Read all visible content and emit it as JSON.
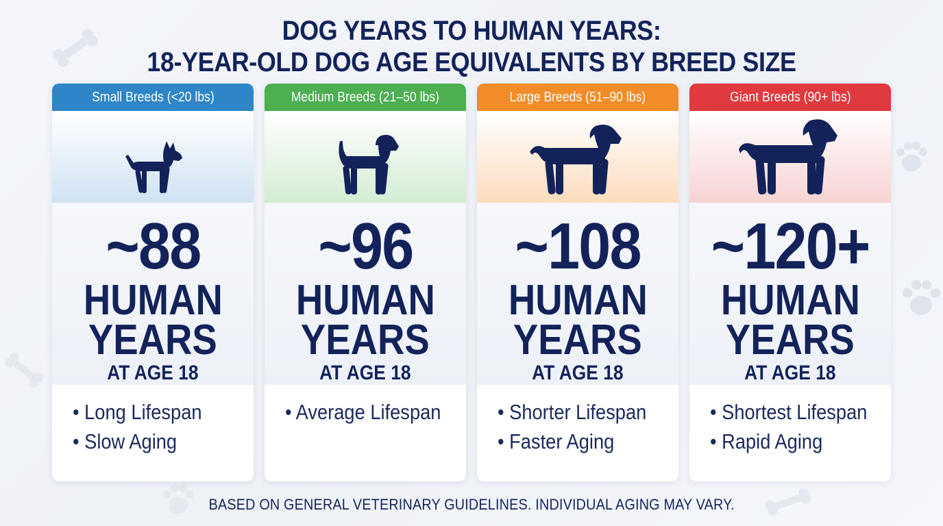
{
  "title": {
    "line1": "DOG YEARS TO HUMAN YEARS:",
    "line2": "18-YEAR-OLD DOG AGE EQUIVALENTS BY BREED SIZE"
  },
  "cards": [
    {
      "header": "Small Breeds (<20 lbs)",
      "color": "#2e86c8",
      "value": "~88",
      "unit_line1": "HUMAN",
      "unit_line2": "YEARS",
      "sub": "AT AGE 18",
      "traits": [
        "• Long Lifespan",
        "• Slow Aging"
      ],
      "dog_icon": "small-dog-silhouette-icon"
    },
    {
      "header": "Medium Breeds (21–50 lbs)",
      "color": "#4caf50",
      "value": "~96",
      "unit_line1": "HUMAN",
      "unit_line2": "YEARS",
      "sub": "AT AGE 18",
      "traits": [
        "• Average Lifespan"
      ],
      "dog_icon": "medium-dog-silhouette-icon"
    },
    {
      "header": "Large Breeds (51–90 lbs)",
      "color": "#f28c28",
      "value": "~108",
      "unit_line1": "HUMAN",
      "unit_line2": "YEARS",
      "sub": "AT AGE 18",
      "traits": [
        "• Shorter Lifespan",
        "• Faster Aging"
      ],
      "dog_icon": "large-dog-silhouette-icon"
    },
    {
      "header": "Giant Breeds (90+ lbs)",
      "color": "#e0393e",
      "value": "~120+",
      "unit_line1": "HUMAN",
      "unit_line2": "YEARS",
      "sub": "AT AGE 18",
      "traits": [
        "• Shortest Lifespan",
        "• Rapid Aging"
      ],
      "dog_icon": "giant-dog-silhouette-icon"
    }
  ],
  "footnote": "BASED ON GENERAL VETERINARY GUIDELINES. INDIVIDUAL AGING MAY VARY.",
  "colors": {
    "navy": "#13235a",
    "small": "#2e86c8",
    "medium": "#4caf50",
    "large": "#f28c28",
    "giant": "#e0393e"
  }
}
